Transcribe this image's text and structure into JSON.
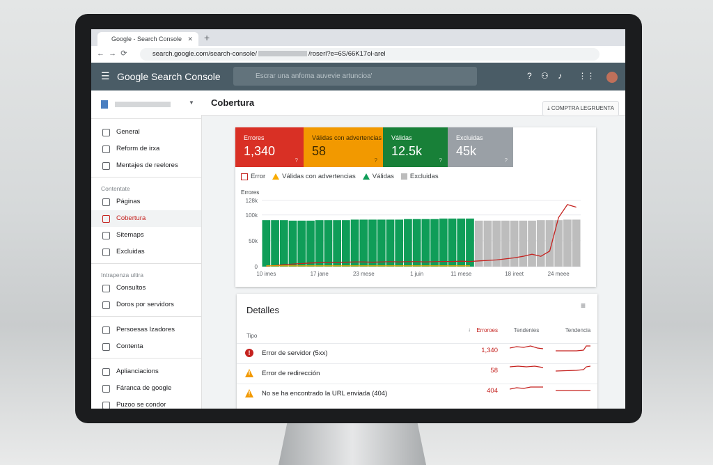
{
  "browser": {
    "tab_title": "Google - Search Console",
    "url": "search.google.com/search-console/",
    "url_tail": "/roserl?e=6S/66K17ol-arel"
  },
  "header": {
    "app_name": "Google Search Console",
    "search_placeholder": "Escrar una anfoma auvevie artuncioa'"
  },
  "sidebar": {
    "groups": [
      {
        "items": [
          "General",
          "Reform de irxa",
          "Mentajes de reelores"
        ]
      },
      {
        "title": "Contentate",
        "items": [
          "Páginas",
          "Cobertura",
          "Sitemaps",
          "Excluidas"
        ]
      },
      {
        "title": "Intrapenza ultira",
        "items": [
          "Consultos",
          "Doros por servidors"
        ]
      },
      {
        "items": [
          "Persoesas Izadores",
          "Contenta"
        ]
      },
      {
        "items": [
          "Aplianciacions",
          "Fáranca de google",
          "Puzoo se condor"
        ]
      }
    ]
  },
  "page": {
    "title": "Cobertura",
    "export_button": "COMPTRA LEGRUENTA"
  },
  "cards": [
    {
      "label": "Errores",
      "value": "1,340",
      "color": "#d93025"
    },
    {
      "label": "Válidas con advertencias",
      "value": "58",
      "color": "#f29900"
    },
    {
      "label": "Válidas",
      "value": "12.5k",
      "color": "#188038"
    },
    {
      "label": "Excluidas",
      "value": "45k",
      "color": "#9aa0a6"
    }
  ],
  "chart_data": {
    "type": "bar",
    "y_label": "Errores",
    "ylim": [
      0,
      128000
    ],
    "yticks": [
      0,
      {
        "value": 50000,
        "label": "50k"
      },
      {
        "value": 100000,
        "label": "100k"
      },
      {
        "value": 128000,
        "label": "128k"
      }
    ],
    "categories": [
      "10 imes",
      null,
      null,
      null,
      null,
      null,
      "17 jane",
      null,
      null,
      null,
      null,
      "23 mese",
      null,
      null,
      null,
      null,
      null,
      "1 juin",
      null,
      null,
      null,
      null,
      "11 mese",
      null,
      null,
      null,
      null,
      null,
      "18 ireet",
      null,
      null,
      null,
      null,
      "24 meee",
      null,
      null
    ],
    "series": [
      {
        "name": "Error",
        "color": "#c5221f",
        "kind": "line",
        "values": [
          1000,
          2000,
          3500,
          5000,
          6000,
          7000,
          7500,
          8000,
          8000,
          8500,
          9000,
          9000,
          8500,
          9000,
          9500,
          9000,
          9500,
          9500,
          9000,
          9500,
          10000,
          10000,
          10500,
          10000,
          11000,
          12000,
          13000,
          15000,
          17000,
          20000,
          24000,
          20000,
          30000,
          95000,
          120000,
          115000
        ]
      },
      {
        "name": "Válidas con advertencias",
        "color": "#f9ab00",
        "kind": "line",
        "values": [
          1500,
          1500,
          1500,
          1500,
          1500,
          1500,
          1500,
          1500,
          1500,
          1500,
          1500,
          1500,
          1500,
          1500,
          1500,
          1500,
          1500,
          1500,
          1500,
          1500,
          1500,
          1500,
          1500,
          1500,
          null,
          null,
          null,
          null,
          null,
          null,
          null,
          null,
          null,
          null,
          null,
          null
        ]
      },
      {
        "name": "Válidas",
        "color": "#0f9d58",
        "kind": "bar",
        "values": [
          90000,
          90000,
          90000,
          89000,
          89000,
          89000,
          90000,
          90000,
          90000,
          90000,
          91000,
          91000,
          91000,
          91000,
          91000,
          91000,
          92000,
          92000,
          92000,
          92000,
          93000,
          93000,
          93000,
          93000,
          null,
          null,
          null,
          null,
          null,
          null,
          null,
          null,
          null,
          null,
          null,
          null
        ]
      },
      {
        "name": "Excluidas",
        "color": "#bdbdbd",
        "kind": "bar",
        "values": [
          null,
          null,
          null,
          null,
          null,
          null,
          null,
          null,
          null,
          null,
          null,
          null,
          null,
          null,
          null,
          null,
          null,
          null,
          null,
          null,
          null,
          null,
          null,
          null,
          89000,
          89000,
          89000,
          89000,
          89000,
          89000,
          89000,
          90000,
          90000,
          90000,
          91000,
          91000
        ]
      }
    ]
  },
  "details": {
    "title": "Detalles",
    "columns": [
      "Tipo",
      "Erroroes",
      "Tendenies",
      "Tendencia"
    ],
    "rows": [
      {
        "type": "Error de servidor (5xx)",
        "count": "1,340",
        "icon": "error"
      },
      {
        "type": "Error de redirección",
        "count": "58",
        "icon": "warning"
      },
      {
        "type": "No se ha encontrado la URL enviada (404)",
        "count": "404",
        "icon": "warning"
      }
    ]
  }
}
